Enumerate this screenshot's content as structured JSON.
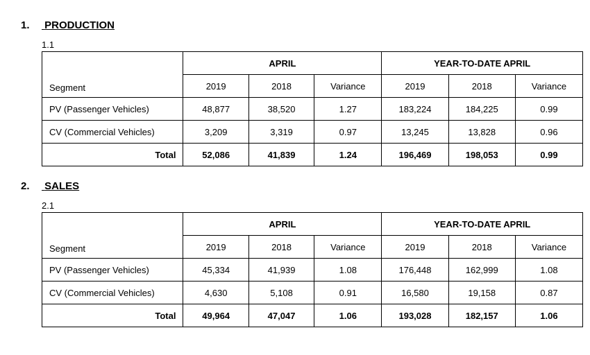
{
  "sections": [
    {
      "number": "1.",
      "title": "PRODUCTION",
      "subsection": "1.1",
      "table": {
        "segment_label": "Segment",
        "period1": "APRIL",
        "period2": "YEAR-TO-DATE APRIL",
        "cols": [
          "2019",
          "2018",
          "Variance",
          "2019",
          "2018",
          "Variance"
        ],
        "rows": [
          {
            "label": "PV (Passenger Vehicles)",
            "vals": [
              "48,877",
              "38,520",
              "1.27",
              "183,224",
              "184,225",
              "0.99"
            ]
          },
          {
            "label": "CV (Commercial Vehicles)",
            "vals": [
              "3,209",
              "3,319",
              "0.97",
              "13,245",
              "13,828",
              "0.96"
            ]
          }
        ],
        "total": {
          "label": "Total",
          "vals": [
            "52,086",
            "41,839",
            "1.24",
            "196,469",
            "198,053",
            "0.99"
          ]
        }
      }
    },
    {
      "number": "2.",
      "title": "SALES",
      "subsection": "2.1",
      "table": {
        "segment_label": "Segment",
        "period1": "APRIL",
        "period2": "YEAR-TO-DATE APRIL",
        "cols": [
          "2019",
          "2018",
          "Variance",
          "2019",
          "2018",
          "Variance"
        ],
        "rows": [
          {
            "label": "PV (Passenger Vehicles)",
            "vals": [
              "45,334",
              "41,939",
              "1.08",
              "176,448",
              "162,999",
              "1.08"
            ]
          },
          {
            "label": "CV (Commercial Vehicles)",
            "vals": [
              "4,630",
              "5,108",
              "0.91",
              "16,580",
              "19,158",
              "0.87"
            ]
          }
        ],
        "total": {
          "label": "Total",
          "vals": [
            "49,964",
            "47,047",
            "1.06",
            "193,028",
            "182,157",
            "1.06"
          ]
        }
      }
    }
  ]
}
